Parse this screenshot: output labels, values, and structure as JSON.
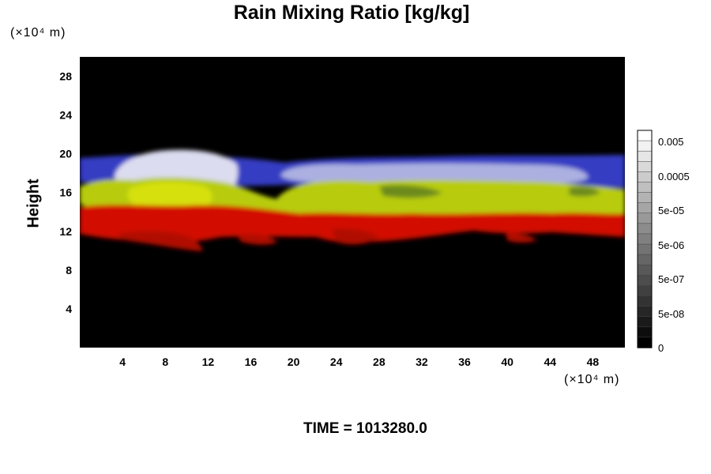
{
  "chart_data": {
    "type": "heatmap",
    "title": "Rain Mixing Ratio [kg/kg]",
    "xlabel": "",
    "ylabel": "Height",
    "x_unit": "(×10⁴ m)",
    "y_unit": "(×10⁴ m)",
    "xlim": [
      0,
      51
    ],
    "ylim": [
      0,
      30
    ],
    "x_ticks": [
      4,
      8,
      12,
      16,
      20,
      24,
      28,
      32,
      36,
      40,
      44,
      48
    ],
    "y_ticks": [
      4,
      8,
      12,
      16,
      20,
      24,
      28
    ],
    "colorbar": {
      "levels": 21,
      "tick_labels": [
        "0.005",
        "0.0005",
        "5e-05",
        "5e-06",
        "5e-07",
        "5e-08",
        "0"
      ]
    },
    "layers": [
      {
        "color": "#e00000",
        "y_range": [
          10.5,
          14.5
        ]
      },
      {
        "color": "#b5c800",
        "y_range": [
          14,
          17.5
        ]
      },
      {
        "color": "#3038e0",
        "y_range": [
          17.5,
          19.5
        ]
      },
      {
        "color": "#d8d8ec",
        "y_range": [
          16.5,
          20
        ]
      }
    ],
    "grid": false,
    "legend": "colorbar-right"
  },
  "footer": {
    "time_label": "TIME = 1013280.0"
  }
}
